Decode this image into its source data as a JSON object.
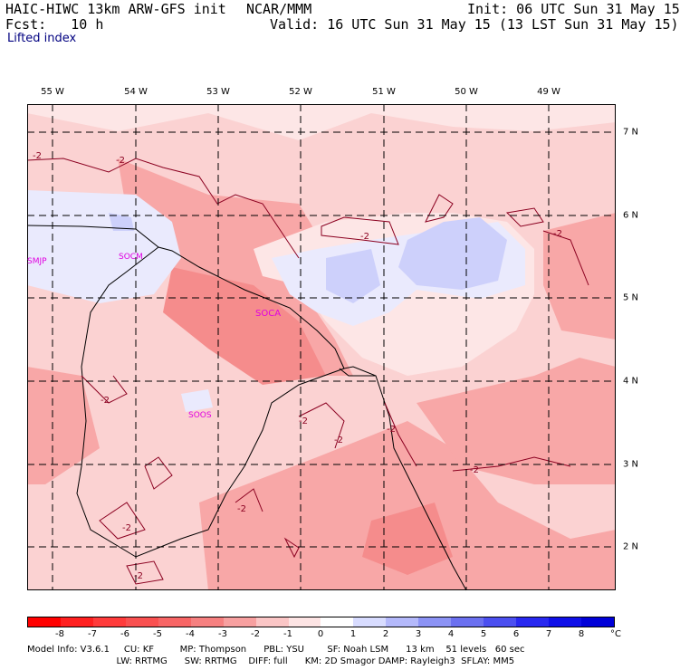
{
  "header": {
    "model": "HAIC-HIWC 13km ARW-GFS init",
    "org": "NCAR/MMM",
    "init": "Init: 06 UTC Sun 31 May 15",
    "fcst": "Fcst:   10 h",
    "valid": "Valid: 16 UTC Sun 31 May 15 (13 LST Sun 31 May 15)",
    "field": "Lifted index"
  },
  "map": {
    "lon_labels": [
      "55 W",
      "54 W",
      "53 W",
      "52 W",
      "51 W",
      "50 W",
      "49 W"
    ],
    "lat_labels": [
      "7 N",
      "6 N",
      "5 N",
      "4 N",
      "3 N",
      "2 N"
    ],
    "stations": [
      "SMJP",
      "SOCM",
      "SOCA",
      "SOOS"
    ],
    "contour_label": "-2",
    "colors": {
      "background": "#fbd2d2",
      "light": "#fde6e6",
      "mid": "#f8a7a7",
      "strong": "#f58c8c",
      "pos1": "#eaeafd",
      "pos2": "#cdd0fb",
      "contour": "#8b0020"
    }
  },
  "colorbar": {
    "labels": [
      "-8",
      "-7",
      "-6",
      "-5",
      "-4",
      "-3",
      "-2",
      "-1",
      "0",
      "1",
      "2",
      "3",
      "4",
      "5",
      "6",
      "7",
      "8"
    ],
    "unit": "°C",
    "colors": [
      "#ff0000",
      "#ff2020",
      "#ff3b3b",
      "#f95050",
      "#f76565",
      "#f68080",
      "#f7a0a0",
      "#fbc6c6",
      "#fde4e4",
      "#ffffff",
      "#d8dcff",
      "#b4b9fb",
      "#8c93f5",
      "#6b70f0",
      "#4b4ff0",
      "#2828f0",
      "#0f0fe8",
      "#0000d8"
    ]
  },
  "model_info": {
    "line1": "Model Info: V3.6.1     CU: KF         MP: Thompson      PBL: YSU        SF: Noah LSM      13 km    51 levels   60 sec",
    "line2": "                               LW: RRTMG      SW: RRTMG    DIFF: full      KM: 2D Smagor DAMP: Rayleigh3  SFLAY: MM5"
  }
}
